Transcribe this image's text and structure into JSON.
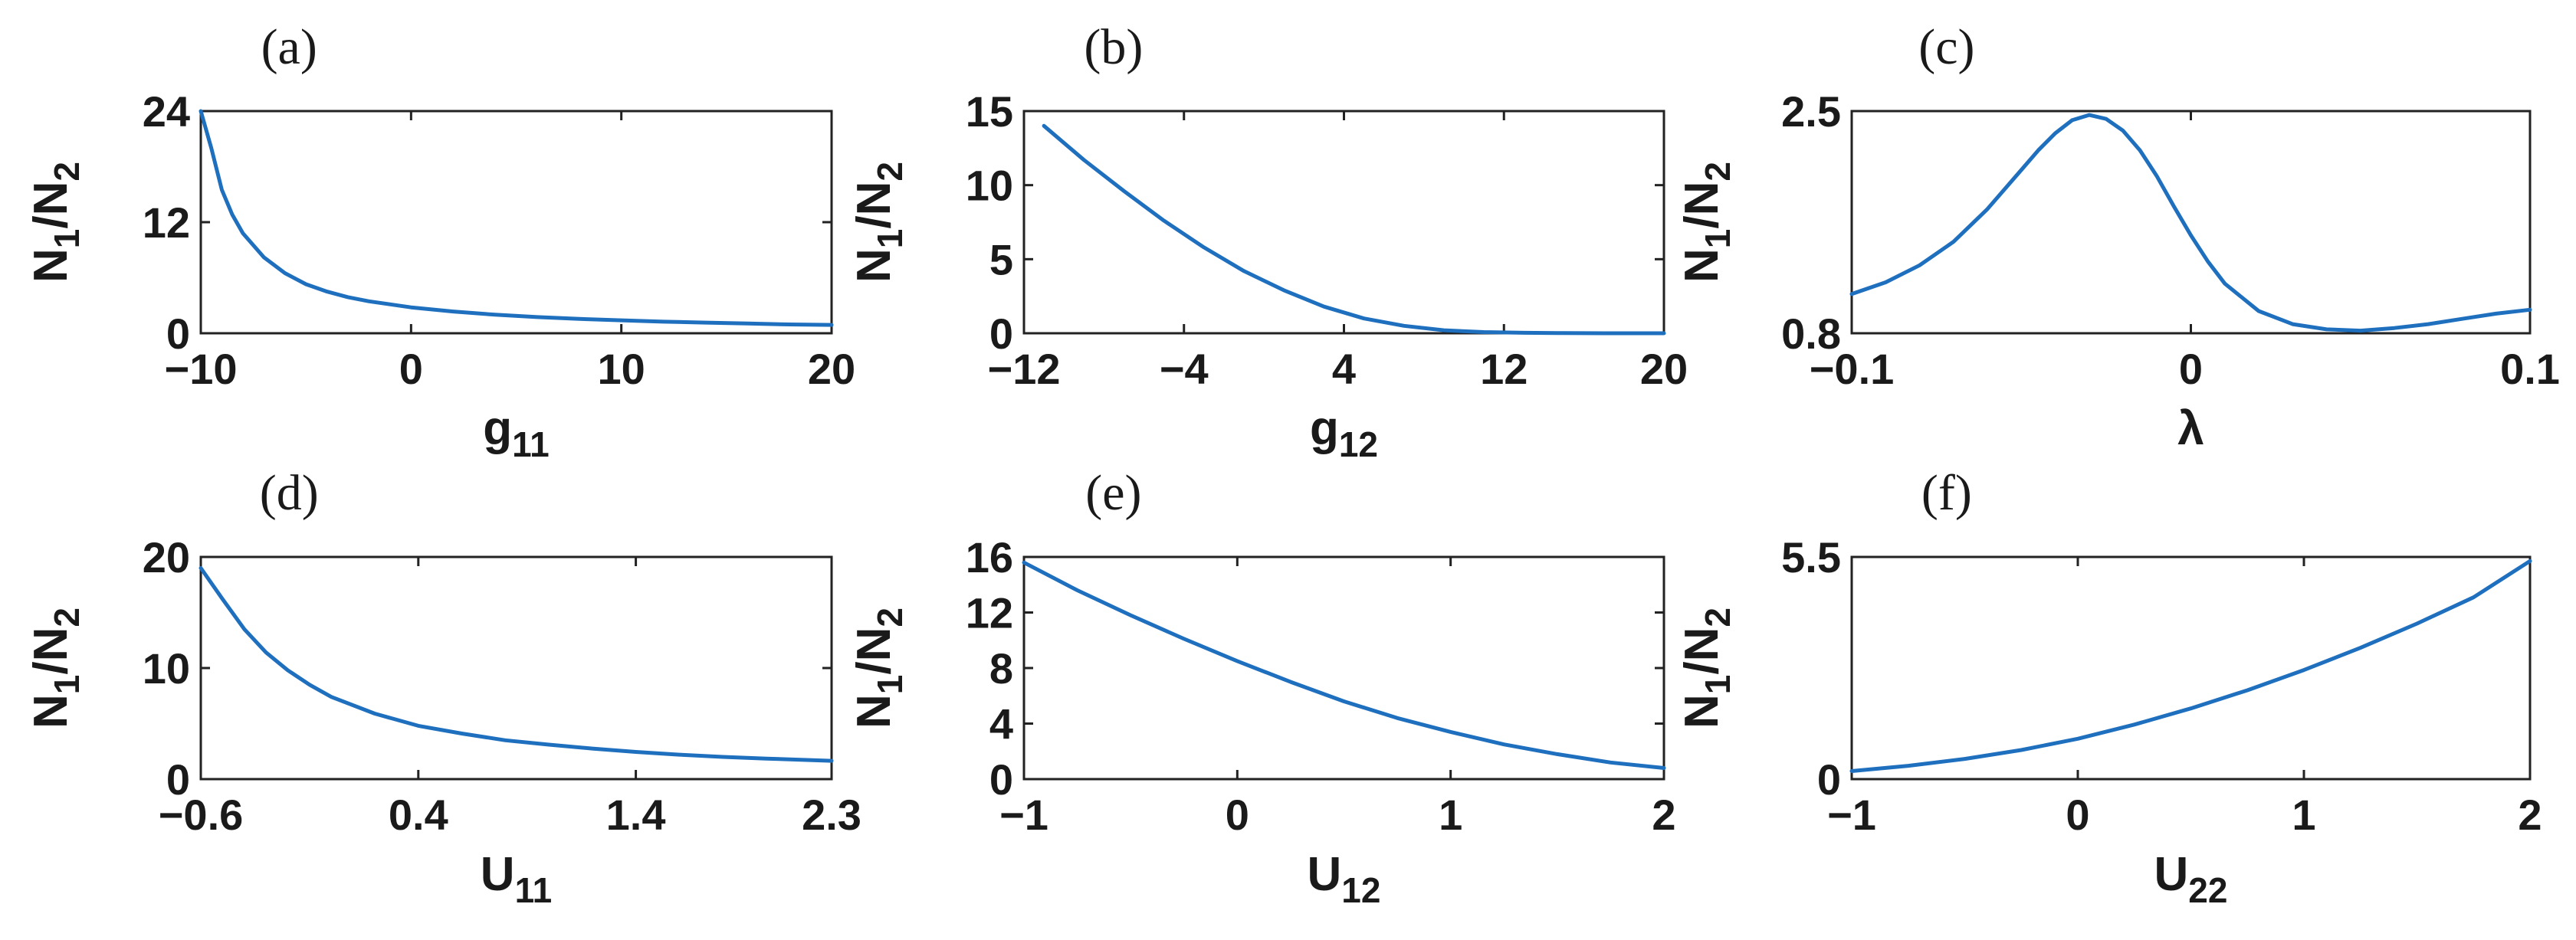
{
  "colors": {
    "line": "#1f6fbf",
    "axis": "#222222",
    "text": "#1a1a1a"
  },
  "chart_data": [
    {
      "type": "line",
      "panel": "(a)",
      "xlabel": "g",
      "xlabel_sub": "11",
      "ylabel": "N",
      "ylabel_sub1": "1",
      "ylabel_mid": "/N",
      "ylabel_sub2": "2",
      "xlim": [
        -10,
        20
      ],
      "ylim": [
        0,
        24
      ],
      "xticks": [
        -10,
        0,
        10,
        20
      ],
      "xtick_labels": [
        "−10",
        "0",
        "10",
        "20"
      ],
      "yticks": [
        0,
        12,
        24
      ],
      "ytick_labels": [
        "0",
        "12",
        "24"
      ],
      "x": [
        -10,
        -9.5,
        -9,
        -8.5,
        -8,
        -7,
        -6,
        -5,
        -4,
        -3,
        -2,
        0,
        2,
        4,
        6,
        8,
        10,
        12,
        14,
        16,
        18,
        20
      ],
      "y": [
        24,
        20,
        15.5,
        12.8,
        10.8,
        8.2,
        6.5,
        5.3,
        4.5,
        3.9,
        3.45,
        2.8,
        2.35,
        2.0,
        1.75,
        1.55,
        1.4,
        1.25,
        1.15,
        1.05,
        0.95,
        0.9
      ]
    },
    {
      "type": "line",
      "panel": "(b)",
      "xlabel": "g",
      "xlabel_sub": "12",
      "ylabel": "N",
      "ylabel_sub1": "1",
      "ylabel_mid": "/N",
      "ylabel_sub2": "2",
      "xlim": [
        -12,
        20
      ],
      "ylim": [
        0,
        15
      ],
      "xticks": [
        -12,
        -4,
        4,
        12,
        20
      ],
      "xtick_labels": [
        "−12",
        "−4",
        "4",
        "12",
        "20"
      ],
      "yticks": [
        0,
        5,
        10,
        15
      ],
      "ytick_labels": [
        "0",
        "5",
        "10",
        "15"
      ],
      "x": [
        -11,
        -9,
        -7,
        -5,
        -3,
        -1,
        1,
        3,
        5,
        7,
        9,
        11,
        13,
        15,
        17,
        20
      ],
      "y": [
        14.0,
        11.7,
        9.6,
        7.6,
        5.8,
        4.2,
        2.9,
        1.8,
        1.0,
        0.5,
        0.2,
        0.08,
        0.03,
        0.01,
        0.0,
        0.0
      ]
    },
    {
      "type": "line",
      "panel": "(c)",
      "xlabel": "λ",
      "xlabel_sub": "",
      "ylabel": "N",
      "ylabel_sub1": "1",
      "ylabel_mid": "/N",
      "ylabel_sub2": "2",
      "xlim": [
        -0.1,
        0.1
      ],
      "ylim": [
        0.8,
        2.5
      ],
      "xticks": [
        -0.1,
        0,
        0.1
      ],
      "xtick_labels": [
        "−0.1",
        "0",
        "0.1"
      ],
      "yticks": [
        0.8,
        2.5
      ],
      "ytick_labels": [
        "0.8",
        "2.5"
      ],
      "x": [
        -0.1,
        -0.09,
        -0.08,
        -0.07,
        -0.06,
        -0.05,
        -0.045,
        -0.04,
        -0.035,
        -0.03,
        -0.025,
        -0.02,
        -0.015,
        -0.01,
        -0.005,
        0,
        0.005,
        0.01,
        0.02,
        0.03,
        0.04,
        0.05,
        0.06,
        0.07,
        0.08,
        0.09,
        0.1
      ],
      "y": [
        1.1,
        1.19,
        1.32,
        1.5,
        1.75,
        2.05,
        2.2,
        2.33,
        2.43,
        2.47,
        2.44,
        2.35,
        2.2,
        2.0,
        1.77,
        1.55,
        1.35,
        1.18,
        0.97,
        0.87,
        0.83,
        0.82,
        0.84,
        0.87,
        0.91,
        0.95,
        0.98
      ]
    },
    {
      "type": "line",
      "panel": "(d)",
      "xlabel": "U",
      "xlabel_sub": "11",
      "ylabel": "N",
      "ylabel_sub1": "1",
      "ylabel_mid": "/N",
      "ylabel_sub2": "2",
      "xlim": [
        -0.6,
        2.3
      ],
      "ylim": [
        0,
        20
      ],
      "xticks": [
        -0.6,
        0.4,
        1.4,
        2.3
      ],
      "xtick_labels": [
        "−0.6",
        "0.4",
        "1.4",
        "2.3"
      ],
      "yticks": [
        0,
        10,
        20
      ],
      "ytick_labels": [
        "0",
        "10",
        "20"
      ],
      "x": [
        -0.6,
        -0.5,
        -0.4,
        -0.3,
        -0.2,
        -0.1,
        0,
        0.2,
        0.4,
        0.6,
        0.8,
        1.0,
        1.2,
        1.4,
        1.6,
        1.8,
        2.0,
        2.3
      ],
      "y": [
        19,
        16.2,
        13.5,
        11.4,
        9.8,
        8.5,
        7.4,
        5.9,
        4.8,
        4.1,
        3.5,
        3.1,
        2.75,
        2.45,
        2.2,
        2.0,
        1.85,
        1.65
      ]
    },
    {
      "type": "line",
      "panel": "(e)",
      "xlabel": "U",
      "xlabel_sub": "12",
      "ylabel": "N",
      "ylabel_sub1": "1",
      "ylabel_mid": "/N",
      "ylabel_sub2": "2",
      "xlim": [
        -1,
        2
      ],
      "ylim": [
        0,
        16
      ],
      "xticks": [
        -1,
        0,
        1,
        2
      ],
      "xtick_labels": [
        "−1",
        "0",
        "1",
        "2"
      ],
      "yticks": [
        0,
        4,
        8,
        12,
        16
      ],
      "ytick_labels": [
        "0",
        "4",
        "8",
        "12",
        "16"
      ],
      "x": [
        -1,
        -0.75,
        -0.5,
        -0.25,
        0,
        0.25,
        0.5,
        0.75,
        1,
        1.25,
        1.5,
        1.75,
        2
      ],
      "y": [
        15.6,
        13.6,
        11.8,
        10.1,
        8.5,
        7.0,
        5.6,
        4.4,
        3.4,
        2.5,
        1.8,
        1.2,
        0.8
      ]
    },
    {
      "type": "line",
      "panel": "(f)",
      "xlabel": "U",
      "xlabel_sub": "22",
      "ylabel": "N",
      "ylabel_sub1": "1",
      "ylabel_mid": "/N",
      "ylabel_sub2": "2",
      "xlim": [
        -1,
        2
      ],
      "ylim": [
        0,
        5.5
      ],
      "xticks": [
        -1,
        0,
        1,
        2
      ],
      "xtick_labels": [
        "−1",
        "0",
        "1",
        "2"
      ],
      "yticks": [
        0,
        5.5
      ],
      "ytick_labels": [
        "0",
        "5.5"
      ],
      "x": [
        -1,
        -0.75,
        -0.5,
        -0.25,
        0,
        0.25,
        0.5,
        0.75,
        1,
        1.25,
        1.5,
        1.75,
        2
      ],
      "y": [
        0.2,
        0.33,
        0.5,
        0.72,
        1.0,
        1.35,
        1.75,
        2.2,
        2.7,
        3.25,
        3.85,
        4.5,
        5.4
      ]
    }
  ]
}
